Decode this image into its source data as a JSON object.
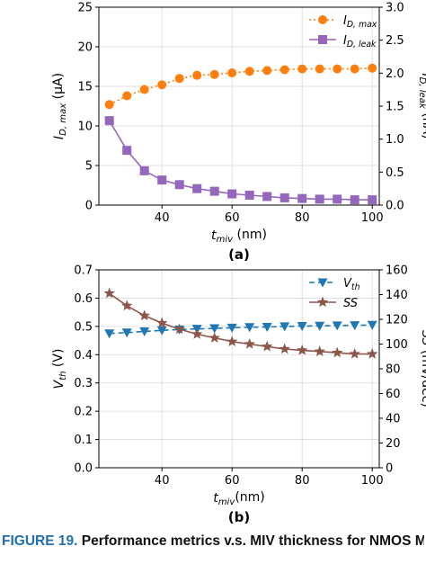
{
  "chart_data": [
    {
      "type": "line",
      "panel_label": "(a)",
      "x": [
        25,
        30,
        35,
        40,
        45,
        50,
        55,
        60,
        65,
        70,
        75,
        80,
        85,
        90,
        95,
        100
      ],
      "xlim": [
        22,
        102
      ],
      "xticks": [
        40,
        60,
        80,
        100
      ],
      "xlabel_main": "t",
      "xlabel_sub": "miv",
      "xlabel_unit": " (nm)",
      "left_axis": {
        "ylim": [
          0,
          25
        ],
        "ticks": [
          0,
          5,
          10,
          15,
          20,
          25
        ],
        "label_main": "I",
        "label_sub": "D, max",
        "label_unit": " (μA)"
      },
      "right_axis": {
        "ylim": [
          0,
          3.0
        ],
        "ticks": [
          "0.0",
          "0.5",
          "1.0",
          "1.5",
          "2.0",
          "2.5",
          "3.0"
        ],
        "label_main": "I",
        "label_sub": "D, leak",
        "label_unit": " (nA)"
      },
      "legend_position": "top-right",
      "grid": true,
      "series": [
        {
          "name_main": "I",
          "name_sub": "D, max",
          "axis": "left",
          "marker": "circle",
          "linestyle": "dotted",
          "color": "#ff7f0e",
          "values": [
            12.7,
            13.8,
            14.6,
            15.2,
            16.0,
            16.4,
            16.5,
            16.7,
            16.9,
            17.0,
            17.1,
            17.2,
            17.2,
            17.2,
            17.2,
            17.3
          ]
        },
        {
          "name_main": "I",
          "name_sub": "D, leak",
          "axis": "right",
          "marker": "square",
          "linestyle": "solid",
          "color": "#9467bd",
          "values": [
            1.28,
            0.83,
            0.52,
            0.38,
            0.31,
            0.25,
            0.21,
            0.17,
            0.15,
            0.13,
            0.11,
            0.1,
            0.09,
            0.09,
            0.08,
            0.08
          ]
        }
      ]
    },
    {
      "type": "line",
      "panel_label": "(b)",
      "x": [
        25,
        30,
        35,
        40,
        45,
        50,
        55,
        60,
        65,
        70,
        75,
        80,
        85,
        90,
        95,
        100
      ],
      "xlim": [
        22,
        102
      ],
      "xticks": [
        40,
        60,
        80,
        100
      ],
      "xlabel_main": "t",
      "xlabel_sub": "miv",
      "xlabel_unit": "(nm)",
      "left_axis": {
        "ylim": [
          0,
          0.7
        ],
        "ticks": [
          "0.0",
          "0.1",
          "0.2",
          "0.3",
          "0.4",
          "0.5",
          "0.6",
          "0.7"
        ],
        "label_main": "V",
        "label_sub": "th",
        "label_unit": " (V)"
      },
      "right_axis": {
        "ylim": [
          0,
          160
        ],
        "ticks": [
          "0",
          "20",
          "40",
          "60",
          "80",
          "100",
          "120",
          "140",
          "160"
        ],
        "label_main": "SS",
        "label_sub": "",
        "label_unit": " (mV/dec)"
      },
      "legend_position": "top-right",
      "grid": true,
      "series": [
        {
          "name_main": "V",
          "name_sub": "th",
          "axis": "left",
          "marker": "triangle-down",
          "linestyle": "dashed",
          "color": "#1f77b4",
          "values": [
            0.475,
            0.478,
            0.482,
            0.486,
            0.489,
            0.491,
            0.493,
            0.495,
            0.497,
            0.498,
            0.5,
            0.501,
            0.502,
            0.503,
            0.504,
            0.505
          ]
        },
        {
          "name_main": "SS",
          "name_sub": "",
          "axis": "right",
          "marker": "star",
          "linestyle": "solid",
          "color": "#8c564b",
          "values": [
            141,
            131,
            123,
            117,
            112,
            108,
            105,
            102,
            100,
            98,
            96,
            95,
            94,
            93,
            92,
            92
          ]
        }
      ]
    }
  ],
  "caption": {
    "figure_number": "FIGURE 19.",
    "text": "Performance metrics v.s. MIV thickness for NMOS MIV-transistor"
  }
}
